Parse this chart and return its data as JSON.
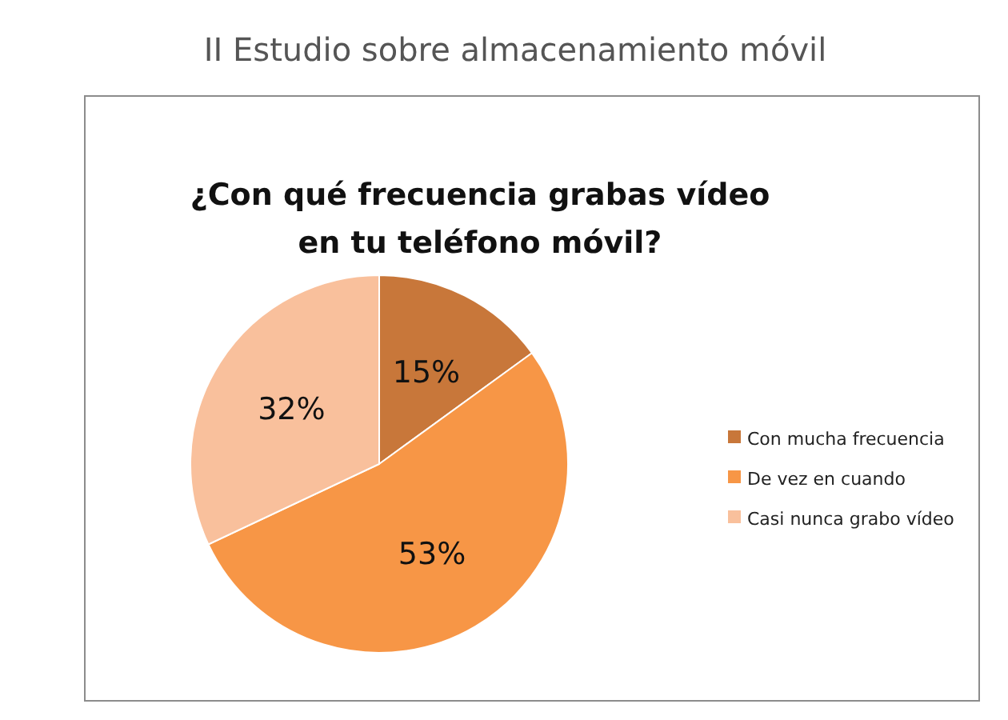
{
  "chart_data": {
    "type": "pie",
    "title": "II Estudio sobre almacenamiento móvil",
    "subtitle": "¿Con qué frecuencia grabas vídeo en tu teléfono móvil?",
    "categories": [
      "Con mucha frecuencia",
      "De vez en cuando",
      "Casi nunca grabo vídeo"
    ],
    "values": [
      15,
      53,
      32
    ],
    "colors": [
      "#c8773a",
      "#f79646",
      "#f9c09c"
    ],
    "value_labels": [
      "15%",
      "53%",
      "32%"
    ],
    "legend": "right"
  }
}
